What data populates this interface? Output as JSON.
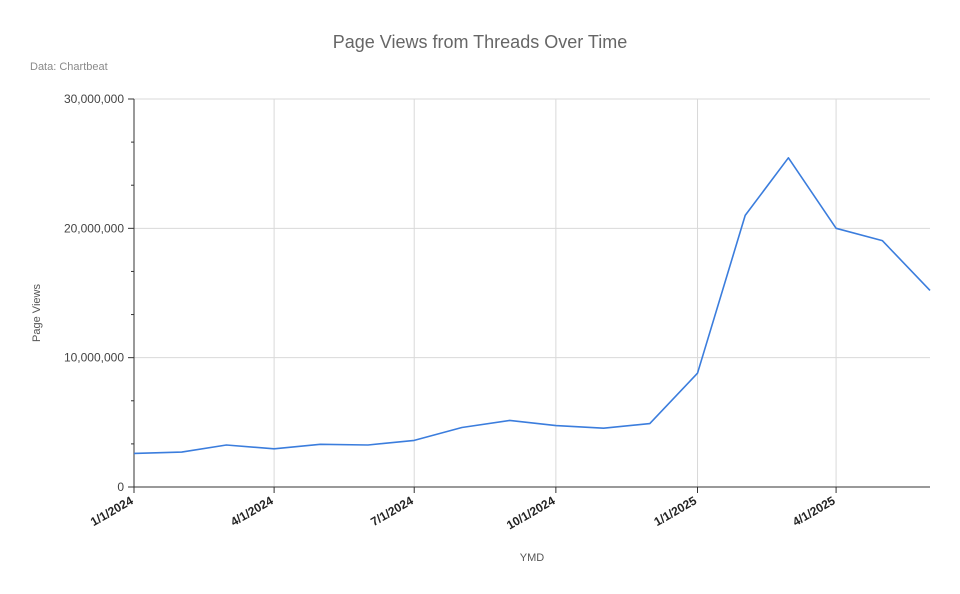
{
  "chart_data": {
    "type": "line",
    "title": "Page Views from Threads Over Time",
    "subtitle": "Data: Chartbeat",
    "xlabel": "YMD",
    "ylabel": "Page Views",
    "ylim": [
      0,
      30000000
    ],
    "y_ticks": [
      "0",
      "10,000,000",
      "20,000,000",
      "30,000,000"
    ],
    "y_tick_values": [
      0,
      10000000,
      20000000,
      30000000
    ],
    "x_ticks": [
      "1/1/2024",
      "4/1/2024",
      "7/1/2024",
      "10/1/2024",
      "1/1/2025",
      "4/1/2025"
    ],
    "x_tick_dates": [
      "2024-01-01",
      "2024-04-01",
      "2024-07-01",
      "2024-10-01",
      "2025-01-01",
      "2025-04-01"
    ],
    "xlim": [
      "2024-01-01",
      "2025-06-01"
    ],
    "grid": true,
    "colors": {
      "line": "#3b7ddd",
      "grid": "#d9d9d9",
      "axis": "#333333"
    },
    "series": [
      {
        "x": [
          "2024-01-01",
          "2024-02-01",
          "2024-03-01",
          "2024-04-01",
          "2024-05-01",
          "2024-06-01",
          "2024-07-01",
          "2024-08-01",
          "2024-09-01",
          "2024-10-01",
          "2024-11-01",
          "2024-12-01",
          "2025-01-01",
          "2025-02-01",
          "2025-03-01",
          "2025-04-01",
          "2025-05-01",
          "2025-06-01"
        ],
        "values": [
          2600000,
          2700000,
          3250000,
          2950000,
          3300000,
          3250000,
          3600000,
          4600000,
          5150000,
          4750000,
          4550000,
          4900000,
          8800000,
          21000000,
          25450000,
          20000000,
          19050000,
          15200000
        ]
      }
    ]
  }
}
